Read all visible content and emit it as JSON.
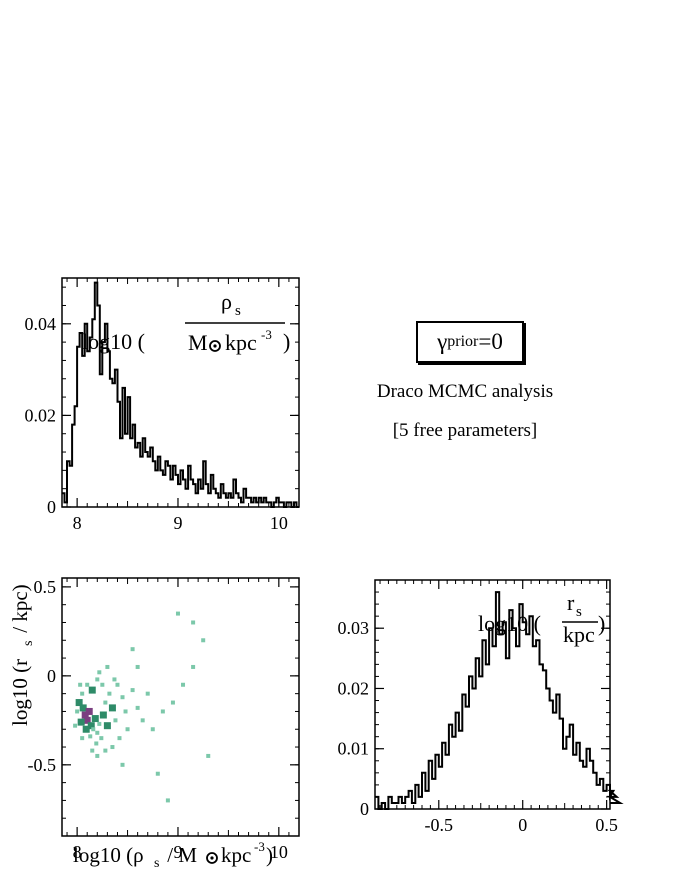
{
  "figure": {
    "prior_label": {
      "main": "γ",
      "sub": "prior",
      "value": "=0"
    },
    "caption_line1": "Draco MCMC analysis",
    "caption_line2": "[5 free parameters]"
  },
  "chart_data": [
    {
      "type": "bar",
      "id": "rho-histogram",
      "title_parts": {
        "prefix": "log10 (",
        "numerator": "ρ",
        "numerator_sub": "s",
        "denominator": "M",
        "denominator_unit": "kpc",
        "denominator_exp": "-3",
        "suffix": ")"
      },
      "xlim": [
        7.85,
        10.2
      ],
      "ylim": [
        0,
        0.05
      ],
      "xticks": [
        {
          "v": 8,
          "label": "8"
        },
        {
          "v": 9,
          "label": "9"
        },
        {
          "v": 10,
          "label": "10"
        }
      ],
      "yticks": [
        {
          "v": 0,
          "label": "0"
        },
        {
          "v": 0.02,
          "label": "0.02"
        },
        {
          "v": 0.04,
          "label": "0.04"
        }
      ],
      "x_start": 7.85,
      "bin_width": 0.025,
      "values": [
        0.003,
        0.001,
        0.01,
        0.009,
        0.018,
        0.022,
        0.035,
        0.038,
        0.033,
        0.04,
        0.034,
        0.037,
        0.041,
        0.049,
        0.044,
        0.029,
        0.036,
        0.04,
        0.034,
        0.028,
        0.027,
        0.03,
        0.023,
        0.015,
        0.026,
        0.016,
        0.024,
        0.015,
        0.018,
        0.013,
        0.014,
        0.011,
        0.015,
        0.012,
        0.011,
        0.013,
        0.01,
        0.008,
        0.011,
        0.008,
        0.007,
        0.01,
        0.009,
        0.006,
        0.009,
        0.007,
        0.005,
        0.008,
        0.006,
        0.004,
        0.009,
        0.006,
        0.005,
        0.003,
        0.006,
        0.004,
        0.01,
        0.005,
        0.003,
        0.007,
        0.004,
        0.003,
        0.002,
        0.005,
        0.003,
        0.002,
        0.003,
        0.002,
        0.006,
        0.003,
        0.002,
        0.001,
        0.004,
        0.002,
        0.002,
        0.001,
        0.002,
        0.001,
        0.002,
        0.001,
        0.002,
        0.001,
        0.001,
        0.0,
        0.001,
        0.002,
        0.001,
        0.001,
        0.0,
        0.001,
        0.001,
        0.0,
        0.001,
        0.0
      ]
    },
    {
      "type": "scatter",
      "id": "joint-density",
      "xlabel_parts": {
        "prefix": "log10 (ρ",
        "sub": "s",
        "mid": " / M",
        "unit": "kpc",
        "exp": "-3",
        "suffix": ")"
      },
      "ylabel_parts": {
        "prefix": "log10 (r",
        "sub": "s",
        "suffix": " / kpc)"
      },
      "xlim": [
        7.85,
        10.2
      ],
      "ylim": [
        -0.9,
        0.55
      ],
      "xticks": [
        {
          "v": 8,
          "label": "8"
        },
        {
          "v": 9,
          "label": "9"
        },
        {
          "v": 10,
          "label": "10"
        }
      ],
      "yticks": [
        {
          "v": -0.5,
          "label": "-0.5"
        },
        {
          "v": 0,
          "label": "0"
        },
        {
          "v": 0.5,
          "label": "0.5"
        }
      ],
      "dense_color": "#2e8b68",
      "light_color": "#7cc8aa",
      "core_color": "#7a3f80",
      "points": [
        {
          "x": 8.05,
          "y": -0.1,
          "c": "light"
        },
        {
          "x": 8.1,
          "y": -0.05,
          "c": "light"
        },
        {
          "x": 8.15,
          "y": -0.08,
          "c": "dense"
        },
        {
          "x": 8.2,
          "y": -0.02,
          "c": "light"
        },
        {
          "x": 8.02,
          "y": -0.15,
          "c": "dense"
        },
        {
          "x": 8.06,
          "y": -0.18,
          "c": "dense"
        },
        {
          "x": 8.08,
          "y": -0.22,
          "c": "core"
        },
        {
          "x": 8.1,
          "y": -0.25,
          "c": "core"
        },
        {
          "x": 8.12,
          "y": -0.2,
          "c": "core"
        },
        {
          "x": 8.14,
          "y": -0.28,
          "c": "dense"
        },
        {
          "x": 8.16,
          "y": -0.3,
          "c": "light"
        },
        {
          "x": 8.18,
          "y": -0.24,
          "c": "dense"
        },
        {
          "x": 8.2,
          "y": -0.32,
          "c": "light"
        },
        {
          "x": 8.22,
          "y": -0.27,
          "c": "light"
        },
        {
          "x": 8.24,
          "y": -0.35,
          "c": "light"
        },
        {
          "x": 8.19,
          "y": -0.38,
          "c": "light"
        },
        {
          "x": 8.13,
          "y": -0.34,
          "c": "light"
        },
        {
          "x": 8.09,
          "y": -0.3,
          "c": "dense"
        },
        {
          "x": 8.04,
          "y": -0.26,
          "c": "dense"
        },
        {
          "x": 8.0,
          "y": -0.2,
          "c": "light"
        },
        {
          "x": 8.26,
          "y": -0.22,
          "c": "dense"
        },
        {
          "x": 8.28,
          "y": -0.15,
          "c": "light"
        },
        {
          "x": 8.3,
          "y": -0.28,
          "c": "dense"
        },
        {
          "x": 8.32,
          "y": -0.1,
          "c": "light"
        },
        {
          "x": 8.35,
          "y": -0.18,
          "c": "dense"
        },
        {
          "x": 8.38,
          "y": -0.25,
          "c": "light"
        },
        {
          "x": 8.25,
          "y": -0.05,
          "c": "light"
        },
        {
          "x": 8.22,
          "y": 0.02,
          "c": "light"
        },
        {
          "x": 8.4,
          "y": -0.05,
          "c": "light"
        },
        {
          "x": 8.42,
          "y": -0.35,
          "c": "light"
        },
        {
          "x": 8.45,
          "y": -0.12,
          "c": "light"
        },
        {
          "x": 8.48,
          "y": -0.2,
          "c": "light"
        },
        {
          "x": 8.5,
          "y": -0.3,
          "c": "light"
        },
        {
          "x": 8.55,
          "y": -0.08,
          "c": "light"
        },
        {
          "x": 8.6,
          "y": -0.18,
          "c": "light"
        },
        {
          "x": 8.15,
          "y": -0.42,
          "c": "light"
        },
        {
          "x": 8.05,
          "y": -0.35,
          "c": "light"
        },
        {
          "x": 7.98,
          "y": -0.28,
          "c": "light"
        },
        {
          "x": 8.3,
          "y": 0.05,
          "c": "light"
        },
        {
          "x": 8.35,
          "y": -0.4,
          "c": "light"
        },
        {
          "x": 8.65,
          "y": -0.25,
          "c": "light"
        },
        {
          "x": 8.7,
          "y": -0.1,
          "c": "light"
        },
        {
          "x": 8.75,
          "y": -0.3,
          "c": "light"
        },
        {
          "x": 8.85,
          "y": -0.2,
          "c": "light"
        },
        {
          "x": 8.95,
          "y": -0.15,
          "c": "light"
        },
        {
          "x": 9.05,
          "y": -0.05,
          "c": "light"
        },
        {
          "x": 9.15,
          "y": 0.05,
          "c": "light"
        },
        {
          "x": 9.25,
          "y": 0.2,
          "c": "light"
        },
        {
          "x": 8.55,
          "y": 0.15,
          "c": "light"
        },
        {
          "x": 8.8,
          "y": -0.55,
          "c": "light"
        },
        {
          "x": 9.0,
          "y": 0.35,
          "c": "light"
        },
        {
          "x": 9.15,
          "y": 0.3,
          "c": "light"
        },
        {
          "x": 8.45,
          "y": -0.5,
          "c": "light"
        },
        {
          "x": 9.3,
          "y": -0.45,
          "c": "light"
        },
        {
          "x": 8.9,
          "y": -0.7,
          "c": "light"
        },
        {
          "x": 8.6,
          "y": 0.05,
          "c": "light"
        },
        {
          "x": 8.2,
          "y": -0.45,
          "c": "light"
        },
        {
          "x": 8.28,
          "y": -0.42,
          "c": "light"
        },
        {
          "x": 8.37,
          "y": -0.02,
          "c": "light"
        },
        {
          "x": 8.03,
          "y": -0.05,
          "c": "light"
        }
      ]
    },
    {
      "type": "bar",
      "id": "rs-histogram",
      "title_parts": {
        "prefix": "log10 (",
        "numerator": "r",
        "numerator_sub": "s",
        "denominator": "kpc",
        "suffix": ")"
      },
      "xlim": [
        -0.88,
        0.52
      ],
      "ylim": [
        0,
        0.038
      ],
      "xticks": [
        {
          "v": -0.5,
          "label": "-0.5"
        },
        {
          "v": 0,
          "label": "0"
        },
        {
          "v": 0.5,
          "label": "0.5"
        }
      ],
      "yticks": [
        {
          "v": 0,
          "label": "0"
        },
        {
          "v": 0.01,
          "label": "0.01"
        },
        {
          "v": 0.02,
          "label": "0.02"
        },
        {
          "v": 0.03,
          "label": "0.03"
        }
      ],
      "x_start": -0.88,
      "bin_width": 0.02,
      "values": [
        0.002,
        0.0,
        0.001,
        0.0,
        0.002,
        0.001,
        0.001,
        0.002,
        0.001,
        0.002,
        0.003,
        0.001,
        0.004,
        0.002,
        0.006,
        0.003,
        0.008,
        0.005,
        0.009,
        0.007,
        0.011,
        0.009,
        0.014,
        0.012,
        0.016,
        0.013,
        0.019,
        0.017,
        0.022,
        0.02,
        0.025,
        0.022,
        0.028,
        0.024,
        0.03,
        0.027,
        0.036,
        0.029,
        0.031,
        0.025,
        0.033,
        0.03,
        0.027,
        0.034,
        0.031,
        0.029,
        0.032,
        0.027,
        0.028,
        0.024,
        0.023,
        0.02,
        0.018,
        0.016,
        0.019,
        0.015,
        0.01,
        0.012,
        0.014,
        0.009,
        0.011,
        0.008,
        0.007,
        0.01,
        0.008,
        0.006,
        0.004,
        0.005,
        0.003,
        0.004,
        0.002,
        0.003,
        0.002,
        0.001
      ]
    }
  ]
}
